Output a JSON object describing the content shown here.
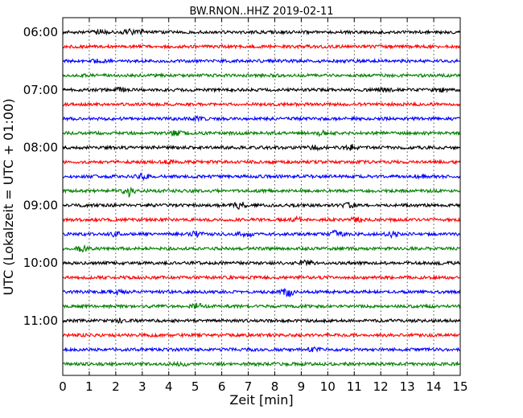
{
  "chart_data": {
    "type": "line",
    "title": "BW.RNON..HHZ 2019-02-11",
    "xlabel": "Zeit  [min]",
    "ylabel": "UTC (Lokalzeit = UTC + 01:00)",
    "xlim": [
      0,
      15
    ],
    "x_ticks": [
      "0",
      "1",
      "2",
      "3",
      "4",
      "5",
      "6",
      "7",
      "8",
      "9",
      "10",
      "11",
      "12",
      "13",
      "14",
      "15"
    ],
    "y_ticks": [
      "06:00",
      "07:00",
      "08:00",
      "09:00",
      "10:00",
      "11:00"
    ],
    "grid": "vertical dotted",
    "trace_minutes": 15,
    "trace_colors": [
      "#000000",
      "#ff0000",
      "#0000ff",
      "#008000"
    ],
    "traces": [
      {
        "start": "06:00",
        "events": [
          [
            1.4,
            2.0
          ],
          [
            2.5,
            2.5
          ],
          [
            3.0,
            1.8
          ]
        ]
      },
      {
        "start": "06:15",
        "events": []
      },
      {
        "start": "06:30",
        "events": [
          [
            1.3,
            1.8
          ]
        ]
      },
      {
        "start": "06:45",
        "events": []
      },
      {
        "start": "07:00",
        "events": [
          [
            2.2,
            2.0
          ],
          [
            12.2,
            1.8
          ],
          [
            14.2,
            2.0
          ]
        ]
      },
      {
        "start": "07:15",
        "events": []
      },
      {
        "start": "07:30",
        "events": [
          [
            5.2,
            2.0
          ]
        ]
      },
      {
        "start": "07:45",
        "events": [
          [
            4.3,
            2.5
          ],
          [
            9.8,
            2.2
          ]
        ]
      },
      {
        "start": "08:00",
        "events": [
          [
            9.5,
            2.0
          ],
          [
            10.9,
            2.8
          ]
        ]
      },
      {
        "start": "08:15",
        "events": [
          [
            4.0,
            1.8
          ]
        ]
      },
      {
        "start": "08:30",
        "events": [
          [
            3.0,
            2.5
          ],
          [
            13.5,
            1.8
          ]
        ]
      },
      {
        "start": "08:45",
        "events": [
          [
            2.5,
            5.5
          ]
        ]
      },
      {
        "start": "09:00",
        "events": [
          [
            6.7,
            3.5
          ],
          [
            10.8,
            2.0
          ]
        ]
      },
      {
        "start": "09:15",
        "events": [
          [
            8.9,
            2.5
          ],
          [
            11.1,
            2.5
          ]
        ]
      },
      {
        "start": "09:30",
        "events": [
          [
            2.0,
            2.0
          ],
          [
            5.0,
            2.8
          ],
          [
            6.9,
            3.5
          ],
          [
            10.3,
            3.5
          ],
          [
            12.4,
            3.0
          ]
        ]
      },
      {
        "start": "09:45",
        "events": [
          [
            0.7,
            3.5
          ]
        ]
      },
      {
        "start": "10:00",
        "events": [
          [
            9.2,
            2.5
          ]
        ]
      },
      {
        "start": "10:15",
        "events": []
      },
      {
        "start": "10:30",
        "events": [
          [
            2.0,
            4.0
          ],
          [
            8.5,
            4.5
          ]
        ]
      },
      {
        "start": "10:45",
        "events": [
          [
            5.1,
            2.8
          ]
        ]
      },
      {
        "start": "11:00",
        "events": [
          [
            2.2,
            2.0
          ]
        ]
      },
      {
        "start": "11:15",
        "events": []
      },
      {
        "start": "11:30",
        "events": [
          [
            9.5,
            1.5
          ]
        ]
      },
      {
        "start": "11:45",
        "events": [
          [
            4.5,
            1.8
          ]
        ]
      }
    ]
  }
}
